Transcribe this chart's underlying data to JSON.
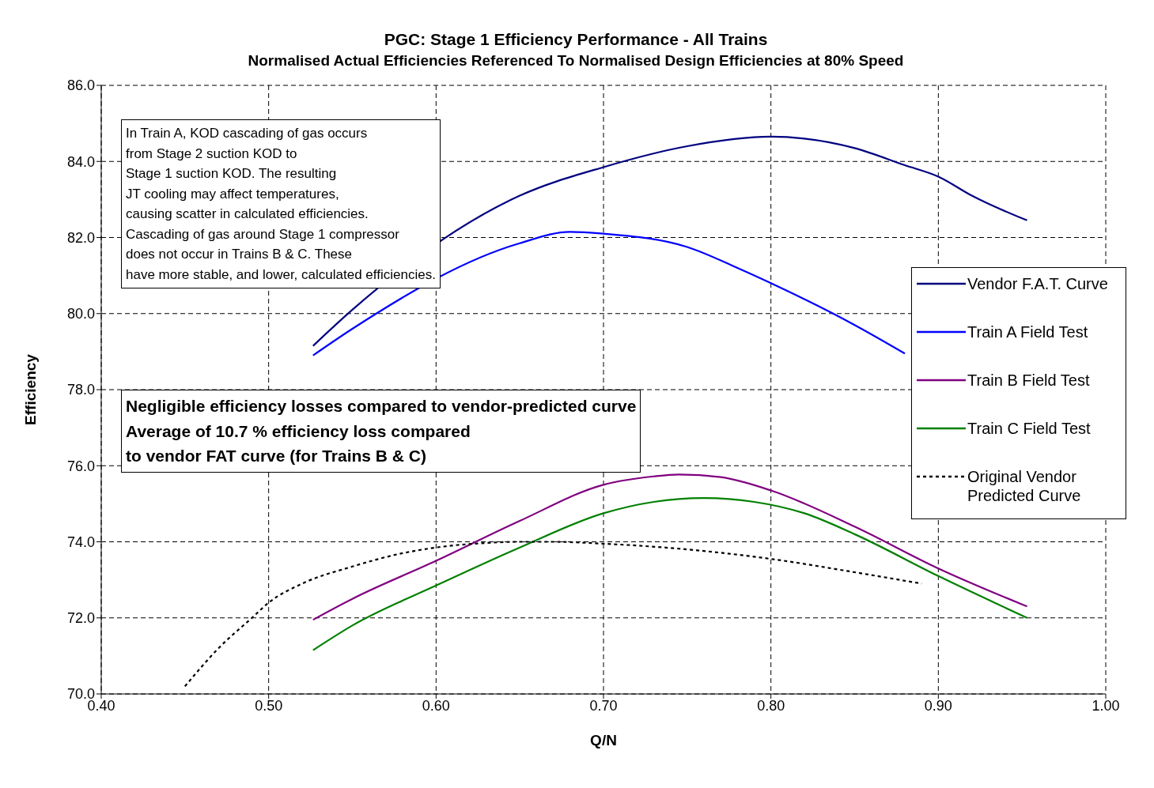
{
  "chart_data": {
    "type": "line",
    "title": "PGC: Stage 1 Efficiency Performance - All Trains",
    "subtitle": "Normalised Actual Efficiencies Referenced To Normalised Design Efficiencies at 80% Speed",
    "xlabel": "Q/N",
    "ylabel": "Efficiency",
    "xlim": [
      0.4,
      1.0
    ],
    "xticks": [
      {
        "value": 0.4,
        "label": "0.40"
      },
      {
        "value": 0.5,
        "label": "0.50"
      },
      {
        "value": 0.6,
        "label": "0.60"
      },
      {
        "value": 0.7,
        "label": "0.70"
      },
      {
        "value": 0.8,
        "label": "0.80"
      },
      {
        "value": 0.9,
        "label": "0.90"
      },
      {
        "value": 1.0,
        "label": "1.00"
      }
    ],
    "ylim": [
      70,
      86
    ],
    "yticks": [
      {
        "value": 70,
        "label": "70.0"
      },
      {
        "value": 72,
        "label": "72.0"
      },
      {
        "value": 74,
        "label": "74.0"
      },
      {
        "value": 76,
        "label": "76.0"
      },
      {
        "value": 78,
        "label": "78.0"
      },
      {
        "value": 80,
        "label": "80.0"
      },
      {
        "value": 82,
        "label": "82.0"
      },
      {
        "value": 84,
        "label": "84.0"
      },
      {
        "value": 86,
        "label": "86.0"
      }
    ],
    "grid": true,
    "legend": "right",
    "marker": "none",
    "series": [
      {
        "name": "Vendor F.A.T. Curve",
        "color": "#000080",
        "x": [
          0.5265,
          0.55,
          0.65,
          0.7,
          0.75,
          0.8,
          0.82,
          0.85,
          0.88,
          0.9,
          0.92,
          0.953
        ],
        "values": [
          79.15,
          80.1,
          83.1,
          83.85,
          84.4,
          84.65,
          84.6,
          84.35,
          83.9,
          83.6,
          83.1,
          82.45
        ]
      },
      {
        "name": "Train A Field Test",
        "color": "#0000ff",
        "x": [
          0.5265,
          0.55,
          0.65,
          0.68,
          0.7,
          0.75,
          0.78,
          0.8,
          0.85,
          0.88
        ],
        "values": [
          78.9,
          79.6,
          81.85,
          82.15,
          82.1,
          81.75,
          81.2,
          80.8,
          79.7,
          78.95
        ]
      },
      {
        "name": "Train B Field Test",
        "color": "#800080",
        "x": [
          0.5265,
          0.55,
          0.6,
          0.65,
          0.7,
          0.73,
          0.745,
          0.77,
          0.8,
          0.85,
          0.9,
          0.953
        ],
        "values": [
          71.95,
          72.5,
          73.5,
          74.55,
          75.5,
          75.72,
          75.77,
          75.7,
          75.35,
          74.4,
          73.3,
          72.3
        ]
      },
      {
        "name": "Train C Field Test",
        "color": "#008000",
        "x": [
          0.5265,
          0.55,
          0.6,
          0.65,
          0.7,
          0.73,
          0.76,
          0.79,
          0.82,
          0.85,
          0.9,
          0.953
        ],
        "values": [
          71.15,
          71.8,
          72.85,
          73.85,
          74.75,
          75.05,
          75.15,
          75.05,
          74.75,
          74.2,
          73.1,
          72.0
        ]
      },
      {
        "name": "Original Vendor Predicted Curve",
        "color": "#000000",
        "line_style": "dotted",
        "x": [
          0.45,
          0.47,
          0.49,
          0.5,
          0.52,
          0.55,
          0.58,
          0.6,
          0.63,
          0.65,
          0.67,
          0.7,
          0.75,
          0.8,
          0.85,
          0.89
        ],
        "values": [
          70.2,
          71.2,
          72.0,
          72.4,
          72.9,
          73.35,
          73.7,
          73.85,
          73.97,
          74.0,
          74.0,
          73.95,
          73.8,
          73.55,
          73.2,
          72.9
        ]
      }
    ],
    "annotations": [
      "In Train A, KOD cascading of gas occurs\nfrom Stage 2 suction KOD to\nStage 1 suction KOD. The resulting\nJT cooling may affect temperatures,\ncausing scatter in calculated efficiencies.\nCascading of gas around Stage 1 compressor\ndoes not occur in Trains B & C. These\nhave more stable, and lower, calculated efficiencies.",
      "Negligible efficiency losses compared to vendor-predicted curve\nAverage of 10.7 % efficiency loss compared\nto vendor FAT curve (for Trains B & C)"
    ]
  }
}
